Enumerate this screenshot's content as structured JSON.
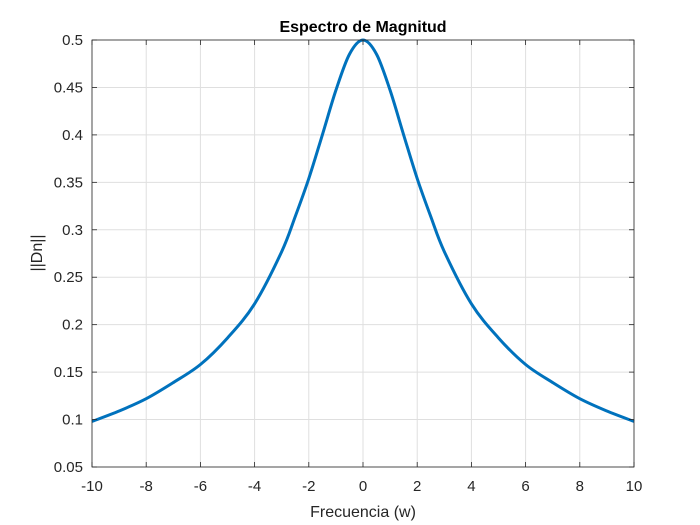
{
  "chart_data": {
    "type": "line",
    "title": "Espectro de Magnitud",
    "xlabel": "Frecuencia (w)",
    "ylabel": "||Dn||",
    "xlim": [
      -10,
      10
    ],
    "ylim": [
      0.05,
      0.5
    ],
    "xticks": [
      -10,
      -8,
      -6,
      -4,
      -2,
      0,
      2,
      4,
      6,
      8,
      10
    ],
    "yticks": [
      0.05,
      0.1,
      0.15,
      0.2,
      0.25,
      0.3,
      0.35,
      0.4,
      0.45,
      0.5
    ],
    "xtick_labels": [
      "-10",
      "-8",
      "-6",
      "-4",
      "-2",
      "0",
      "2",
      "4",
      "6",
      "8",
      "10"
    ],
    "ytick_labels": [
      "0.05",
      "0.1",
      "0.15",
      "0.2",
      "0.25",
      "0.3",
      "0.35",
      "0.4",
      "0.45",
      "0.5"
    ],
    "grid": true,
    "line_color": "#0072BD",
    "series": [
      {
        "x": [
          -10,
          -9,
          -8,
          -7,
          -6,
          -5,
          -4,
          -3,
          -2.5,
          -2,
          -1.5,
          -1,
          -0.5,
          0,
          0.5,
          1,
          1.5,
          2,
          2.5,
          3,
          4,
          5,
          6,
          7,
          8,
          9,
          10
        ],
        "values": [
          0.098,
          0.109,
          0.122,
          0.139,
          0.158,
          0.186,
          0.222,
          0.277,
          0.314,
          0.354,
          0.4,
          0.447,
          0.485,
          0.5,
          0.485,
          0.447,
          0.4,
          0.354,
          0.314,
          0.277,
          0.222,
          0.186,
          0.158,
          0.139,
          0.122,
          0.109,
          0.098
        ]
      }
    ]
  }
}
